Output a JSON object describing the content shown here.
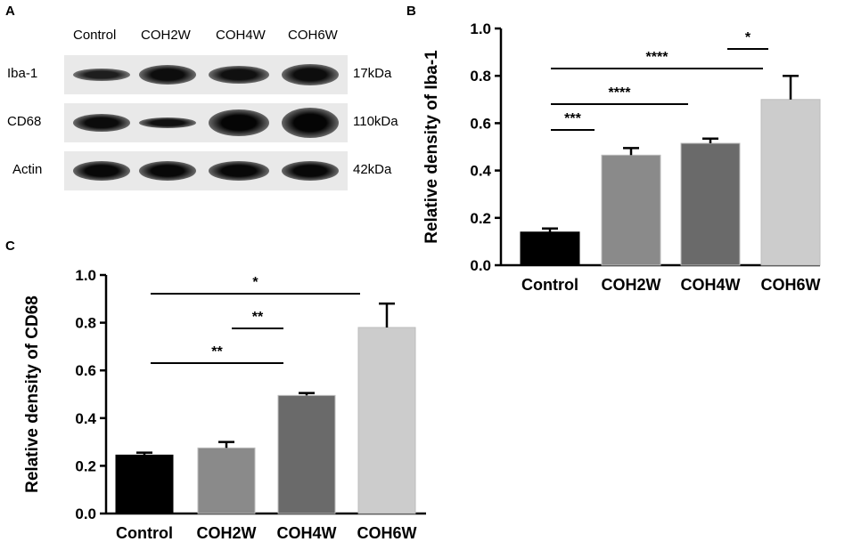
{
  "panel_letters": {
    "a": "A",
    "b": "B",
    "c": "C"
  },
  "blot": {
    "lanes": [
      "Control",
      "COH2W",
      "COH4W",
      "COH6W"
    ],
    "rows": [
      {
        "label": "Iba-1",
        "size": "17kDa",
        "band_intensity": [
          0.55,
          0.85,
          0.8,
          0.85
        ],
        "band_height": [
          0.35,
          0.55,
          0.5,
          0.6
        ]
      },
      {
        "label": "CD68",
        "size": "110kDa",
        "band_intensity": [
          0.9,
          0.8,
          1.0,
          1.0
        ],
        "band_height": [
          0.5,
          0.3,
          0.75,
          0.85
        ]
      },
      {
        "label": "Actin",
        "size": "42kDa",
        "band_intensity": [
          0.95,
          0.95,
          0.95,
          0.95
        ],
        "band_height": [
          0.55,
          0.55,
          0.55,
          0.55
        ]
      }
    ]
  },
  "chart_data": [
    {
      "id": "B",
      "type": "bar",
      "categories": [
        "Control",
        "COH2W",
        "COH4W",
        "COH6W"
      ],
      "values": [
        0.14,
        0.465,
        0.515,
        0.7
      ],
      "errors": [
        0.015,
        0.03,
        0.02,
        0.1
      ],
      "colors": [
        "#000000",
        "#8a8a8a",
        "#6a6a6a",
        "#cccccc"
      ],
      "ylabel": "Relative density of Iba-1",
      "ylim": [
        0,
        1.0
      ],
      "yticks": [
        "0.0",
        "0.2",
        "0.4",
        "0.6",
        "0.8",
        "1.0"
      ],
      "significance": [
        {
          "from": 0,
          "to": 1,
          "label": "***"
        },
        {
          "from": 0,
          "to": 2,
          "label": "****"
        },
        {
          "from": 0,
          "to": 3,
          "label": "****"
        },
        {
          "from": 2,
          "to": 3,
          "label": "*"
        }
      ]
    },
    {
      "id": "C",
      "type": "bar",
      "categories": [
        "Control",
        "COH2W",
        "COH4W",
        "COH6W"
      ],
      "values": [
        0.245,
        0.275,
        0.495,
        0.78
      ],
      "errors": [
        0.01,
        0.025,
        0.01,
        0.1
      ],
      "colors": [
        "#000000",
        "#8a8a8a",
        "#6a6a6a",
        "#cccccc"
      ],
      "ylabel": "Relative density of CD68",
      "ylim": [
        0,
        1.0
      ],
      "yticks": [
        "0.0",
        "0.2",
        "0.4",
        "0.6",
        "0.8",
        "1.0"
      ],
      "significance": [
        {
          "from": 0,
          "to": 2,
          "label": "**"
        },
        {
          "from": 1,
          "to": 2,
          "label": "**"
        },
        {
          "from": 0,
          "to": 3,
          "label": "*"
        }
      ]
    }
  ]
}
